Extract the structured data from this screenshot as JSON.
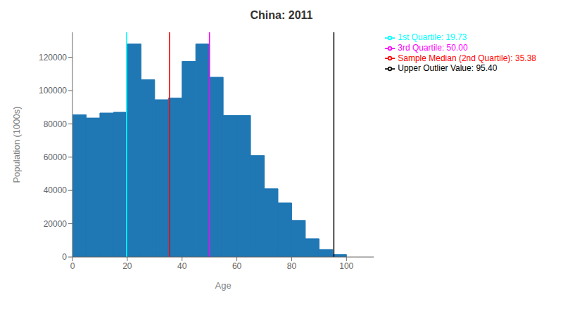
{
  "chart_data": {
    "type": "histogram",
    "title": "China: 2011",
    "xlabel": "Age",
    "ylabel": "Population (1000s)",
    "bins": [
      0,
      5,
      10,
      15,
      20,
      25,
      30,
      35,
      40,
      45,
      50,
      55,
      60,
      65,
      70,
      75,
      80,
      85,
      90,
      95,
      100
    ],
    "values": [
      85500,
      83500,
      86500,
      87000,
      128000,
      106500,
      94500,
      95500,
      117500,
      128000,
      108000,
      85000,
      85000,
      61000,
      41000,
      32500,
      22000,
      11000,
      4500,
      1500
    ],
    "color": "#1f77b4",
    "xlim": [
      0,
      110
    ],
    "ylim": [
      0,
      135000
    ],
    "xticks": [
      0,
      20,
      40,
      60,
      80,
      100
    ],
    "yticks": [
      0,
      20000,
      40000,
      60000,
      80000,
      100000,
      120000
    ],
    "vlines": [
      {
        "name": "1st Quartile: 19.73",
        "x": 19.73,
        "color": "cyan"
      },
      {
        "name": "Sample Median (2nd Quartile): 35.38",
        "x": 35.38,
        "color": "red"
      },
      {
        "name": "3rd Quartile: 50.00",
        "x": 50.0,
        "color": "magenta"
      },
      {
        "name": "Upper Outlier Value: 95.40",
        "x": 95.4,
        "color": "black"
      }
    ],
    "legend": "upper right"
  }
}
